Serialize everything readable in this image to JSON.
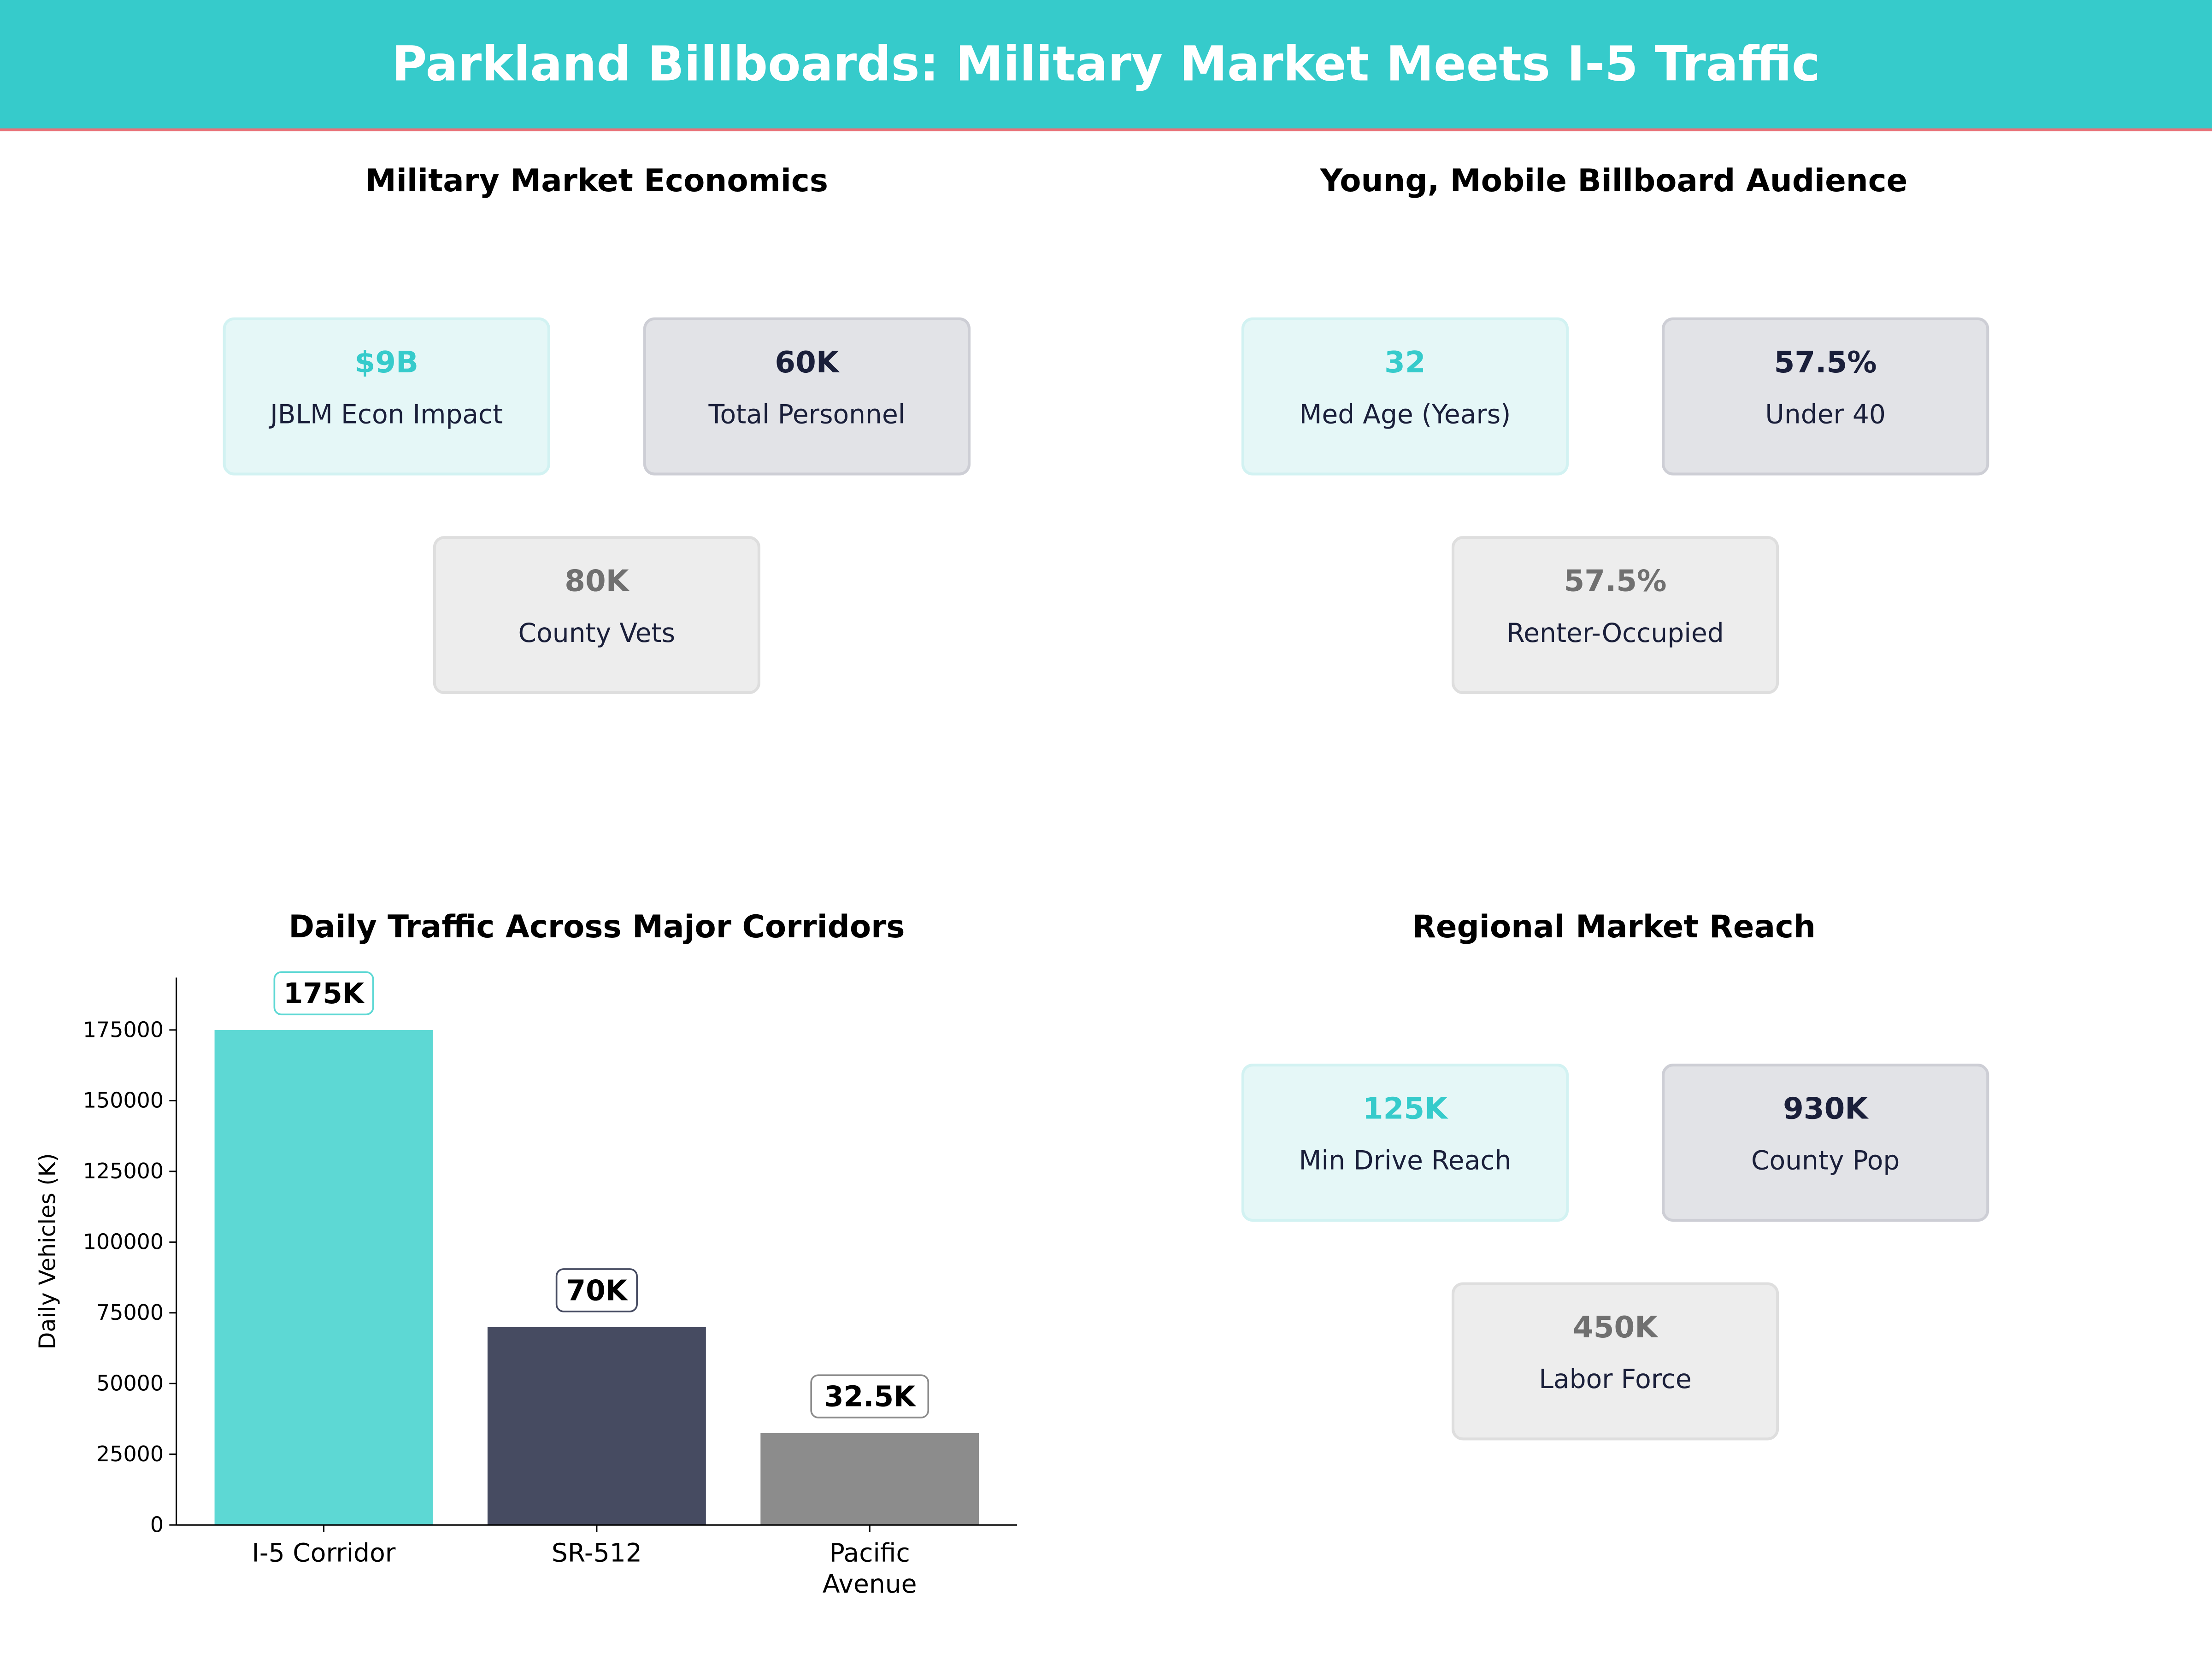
{
  "title": "Parkland Billboards: Military Market Meets I-5 Traffic",
  "colors": {
    "header": "#36CBCB",
    "accent_line": "#E8737A",
    "teal": "#36CBCB",
    "navy": "#1a1f3a",
    "grey": "#707070"
  },
  "panels": [
    {
      "title": "Military Market Economics",
      "cards": [
        {
          "value": "$9B",
          "label": "JBLM Econ Impact",
          "style": "teal"
        },
        {
          "value": "60K",
          "label": "Total Personnel",
          "style": "dark"
        },
        {
          "value": "80K",
          "label": "County Vets",
          "style": "grey"
        }
      ]
    },
    {
      "title": "Young, Mobile Billboard Audience",
      "cards": [
        {
          "value": "32",
          "label": "Med Age (Years)",
          "style": "teal"
        },
        {
          "value": "57.5%",
          "label": "Under 40",
          "style": "dark"
        },
        {
          "value": "57.5%",
          "label": "Renter-Occupied",
          "style": "grey"
        }
      ]
    },
    {
      "title": "Regional Market Reach",
      "cards": [
        {
          "value": "125K",
          "label": "Min Drive Reach",
          "style": "teal"
        },
        {
          "value": "930K",
          "label": "County Pop",
          "style": "dark"
        },
        {
          "value": "450K",
          "label": "Labor Force",
          "style": "grey"
        }
      ]
    }
  ],
  "chart_data": {
    "type": "bar",
    "title": "Daily Traffic Across Major Corridors",
    "categories": [
      "I-5 Corridor",
      "SR-512",
      "Pacific Avenue"
    ],
    "category_lines": [
      [
        "I-5 Corridor"
      ],
      [
        "SR-512"
      ],
      [
        "Pacific",
        "Avenue"
      ]
    ],
    "values": [
      175000,
      70000,
      32500
    ],
    "data_labels": [
      "175K",
      "70K",
      "32.5K"
    ],
    "bar_colors": [
      "#5DD8D4",
      "#464B61",
      "#8C8C8C"
    ],
    "label_border_colors": [
      "#5DD8D4",
      "#464B61",
      "#8C8C8C"
    ],
    "xlabel": "",
    "ylabel": "Daily Vehicles (K)",
    "ylim": [
      0,
      193500
    ],
    "yticks": [
      0,
      25000,
      50000,
      75000,
      100000,
      125000,
      150000,
      175000
    ],
    "grid": false,
    "legend": "none"
  }
}
